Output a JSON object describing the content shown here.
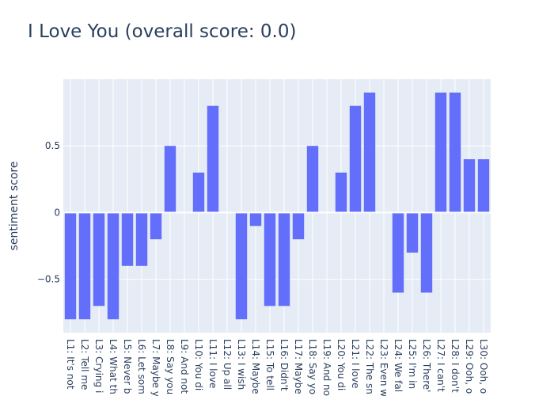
{
  "chart_data": {
    "type": "bar",
    "title": "I Love You (overall score: 0.0)",
    "xlabel": "",
    "ylabel": "sentiment score",
    "ylim": [
      -0.9,
      1.0
    ],
    "yticks": [
      -0.5,
      0,
      0.5
    ],
    "ytick_labels": [
      "−0.5",
      "0",
      "0.5"
    ],
    "grid": true,
    "legend": false,
    "bar_color": "#636efa",
    "plot_background": "#e5ecf6",
    "categories": [
      "L1: It's not",
      "L2: Tell me",
      "L3: Crying i",
      "L4: What th",
      "L5: Never b",
      "L6: Let som",
      "L7: Maybe y",
      "L8: Say you",
      "L9: And not",
      "L10: You di",
      "L11: I love",
      "L12: Up all",
      "L13: I wish",
      "L14: Maybe",
      "L15: To tell",
      "L16: Didn't",
      "L17: Maybe",
      "L18: Say yo",
      "L19: And no",
      "L20: You di",
      "L21: I love",
      "L22: The sn",
      "L23: Even w",
      "L24: We fal",
      "L25: I'm in",
      "L26: There'",
      "L27: I can't",
      "L28: I don't",
      "L29: Ooh, o",
      "L30: Ooh, o"
    ],
    "values": [
      -0.8,
      -0.8,
      -0.7,
      -0.8,
      -0.4,
      -0.4,
      -0.2,
      0.5,
      0.0,
      0.3,
      0.8,
      0.0,
      -0.8,
      -0.1,
      -0.7,
      -0.7,
      -0.2,
      0.5,
      0.0,
      0.3,
      0.8,
      0.9,
      0.0,
      -0.6,
      -0.3,
      -0.6,
      0.9,
      0.9,
      0.4,
      0.4
    ]
  }
}
